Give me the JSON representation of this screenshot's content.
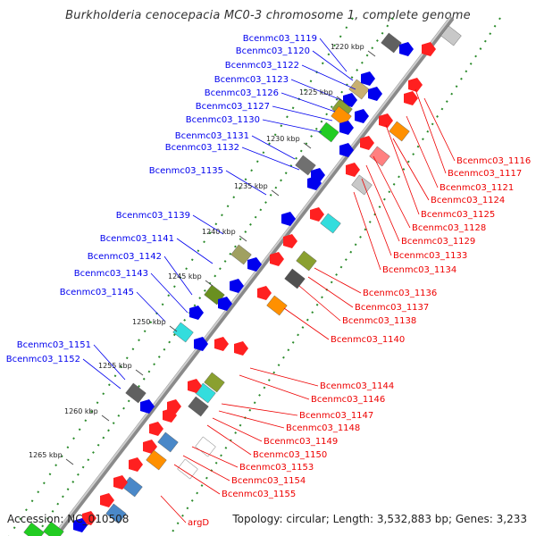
{
  "title": "Burkholderia cenocepacia MC0-3 chromosome 1, complete genome",
  "footer": {
    "accession": "Accession: NC_010508",
    "topology": "Topology: circular; Length: 3,532,883 bp; Genes: 3,233"
  },
  "ticks": [
    "1220 kbp",
    "1225 kbp",
    "1230 kbp",
    "1235 kbp",
    "1240 kbp",
    "1245 kbp",
    "1250 kbp",
    "1255 kbp",
    "1260 kbp",
    "1265 kbp"
  ],
  "left_labels": [
    "Bcenmc03_1119",
    "Bcenmc03_1120",
    "Bcenmc03_1122",
    "Bcenmc03_1123",
    "Bcenmc03_1126",
    "Bcenmc03_1127",
    "Bcenmc03_1130",
    "Bcenmc03_1131",
    "Bcenmc03_1132",
    "Bcenmc03_1135",
    "Bcenmc03_1139",
    "Bcenmc03_1141",
    "Bcenmc03_1142",
    "Bcenmc03_1143",
    "Bcenmc03_1145",
    "Bcenmc03_1151",
    "Bcenmc03_1152"
  ],
  "right_labels": [
    "Bcenmc03_1116",
    "Bcenmc03_1117",
    "Bcenmc03_1121",
    "Bcenmc03_1124",
    "Bcenmc03_1125",
    "Bcenmc03_1128",
    "Bcenmc03_1129",
    "Bcenmc03_1133",
    "Bcenmc03_1134",
    "Bcenmc03_1136",
    "Bcenmc03_1137",
    "Bcenmc03_1138",
    "Bcenmc03_1140",
    "Bcenmc03_1144",
    "Bcenmc03_1146",
    "Bcenmc03_1147",
    "Bcenmc03_1148",
    "Bcenmc03_1149",
    "Bcenmc03_1150",
    "Bcenmc03_1153",
    "Bcenmc03_1154",
    "Bcenmc03_1155",
    "argD"
  ],
  "colors": {
    "forward_strand": "#0000ee",
    "reverse_strand": "#ee0000",
    "backbone": "#888888",
    "gc_dots": "#228822"
  }
}
